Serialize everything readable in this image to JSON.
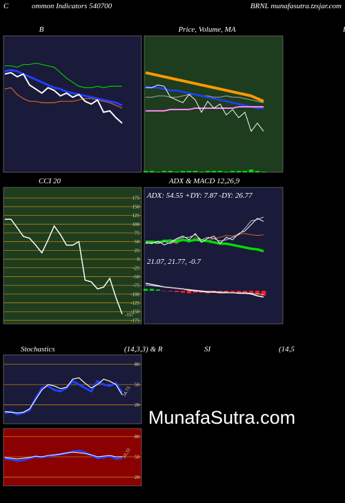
{
  "header": {
    "left_letter": "C",
    "left": "ommon Indicators 540700",
    "right": "BRNL munafasutra.tzsjar.com",
    "edge": "I"
  },
  "row_titles": [
    "Stochastics",
    "(14,3,3) & R",
    "SI",
    "(14,5"
  ],
  "watermark": "MunafaSutra.com",
  "chart_data": [
    {
      "type": "line",
      "title": "B",
      "background": "#1a1a3a",
      "ylim": [
        0,
        100
      ],
      "series": [
        {
          "color": "#00cc00",
          "width": 1.2,
          "values": [
            78,
            78,
            77,
            79,
            79,
            80,
            79,
            78,
            77,
            73,
            69,
            66,
            63,
            62,
            62,
            63,
            62,
            63,
            63,
            63
          ]
        },
        {
          "color": "#d2691e",
          "width": 1.2,
          "values": [
            61,
            62,
            57,
            54,
            52,
            52,
            51,
            51,
            51,
            52,
            52,
            52,
            53,
            54,
            54,
            53,
            52,
            51,
            49,
            47
          ]
        },
        {
          "color": "#2040ff",
          "width": 3,
          "values": [
            74,
            75,
            74,
            72,
            70,
            68,
            66,
            64,
            62,
            61,
            59,
            58,
            57,
            56,
            55,
            54,
            53,
            52,
            51,
            49
          ]
        },
        {
          "color": "#ffffff",
          "width": 2,
          "values": [
            72,
            73,
            70,
            72,
            64,
            61,
            58,
            62,
            60,
            56,
            58,
            55,
            57,
            52,
            50,
            53,
            44,
            45,
            40,
            36
          ]
        }
      ]
    },
    {
      "type": "line",
      "title": "Price, Volume, MA",
      "background": "#1e3d1e",
      "ylim": [
        0,
        100
      ],
      "series": [
        {
          "type": "bar",
          "color": "#00dd00",
          "values": [
            1,
            1,
            0.5,
            1,
            1,
            0.5,
            1,
            1,
            1,
            0.5,
            1,
            1,
            1,
            0.5,
            1,
            1,
            1,
            2,
            1,
            0.5
          ]
        },
        {
          "color": "#aaaaaa",
          "width": 1,
          "values": [
            55,
            55,
            56,
            56,
            55,
            55,
            56,
            57,
            57,
            56,
            56,
            55,
            55,
            56,
            55,
            55,
            54,
            53,
            52,
            51
          ]
        },
        {
          "color": "#ff9900",
          "width": 4,
          "values": [
            73,
            72,
            71,
            70,
            69,
            68,
            67,
            66,
            65,
            64,
            63,
            62,
            61,
            60,
            59,
            58,
            57,
            56,
            54,
            52
          ]
        },
        {
          "color": "#2040ff",
          "width": 2.5,
          "values": [
            63,
            62,
            62,
            61,
            60,
            60,
            59,
            58,
            57,
            56,
            55,
            54,
            53,
            52,
            51,
            50,
            49,
            48,
            47,
            47
          ]
        },
        {
          "color": "#ff88ff",
          "width": 2,
          "values": [
            45,
            45,
            45,
            45,
            46,
            46,
            46,
            46,
            47,
            47,
            47,
            47,
            47,
            47,
            47,
            48,
            48,
            48,
            48,
            48
          ]
        },
        {
          "color": "#ffffff",
          "width": 1,
          "values": [
            62,
            62,
            64,
            63,
            55,
            53,
            51,
            57,
            53,
            44,
            52,
            47,
            50,
            42,
            46,
            40,
            44,
            30,
            36,
            30
          ]
        }
      ]
    },
    {
      "type": "line",
      "title": "CCI 20",
      "background": "#1e3d1e",
      "ylim": [
        -185,
        205
      ],
      "grid": true,
      "grid_color": "#b8860b",
      "yticks": [
        175,
        150,
        125,
        100,
        75,
        50,
        25,
        0,
        -25,
        -50,
        -75,
        -100,
        -125,
        -150,
        -175
      ],
      "series": [
        {
          "color": "#ffffff",
          "width": 1.5,
          "end_label": true,
          "values": [
            114,
            114,
            90,
            65,
            60,
            40,
            18,
            55,
            95,
            70,
            40,
            40,
            50,
            -60,
            -65,
            -85,
            -80,
            -55,
            -110,
            -157
          ]
        }
      ]
    },
    {
      "type": "line",
      "title": "ADX & MACD 12,26,9",
      "label": "ADX: 54.55 +DY: 7.87 -DY: 26.77",
      "background": "#1a1a3a",
      "ylim": [
        0,
        100
      ],
      "series": [
        {
          "color": "#d2691e",
          "width": 1,
          "values": [
            22,
            21,
            22,
            26,
            24,
            20,
            28,
            22,
            30,
            26,
            24,
            28,
            30,
            33,
            32,
            35,
            36,
            34,
            33,
            34
          ]
        },
        {
          "color": "#00dd00",
          "width": 3.5,
          "values": [
            23,
            23,
            22,
            24,
            25,
            23,
            26,
            24,
            26,
            25,
            24,
            22,
            20,
            20,
            18,
            16,
            14,
            12,
            11,
            8
          ]
        },
        {
          "color": "#ffffff",
          "width": 1,
          "values": [
            22,
            20,
            24,
            18,
            22,
            28,
            32,
            26,
            36,
            22,
            28,
            32,
            20,
            30,
            26,
            36,
            40,
            50,
            60,
            55
          ]
        },
        {
          "color": "#cccccc",
          "width": 1,
          "values": [
            20,
            22,
            20,
            24,
            20,
            26,
            30,
            30,
            34,
            26,
            30,
            28,
            24,
            26,
            30,
            34,
            44,
            56,
            58,
            62
          ]
        }
      ]
    },
    {
      "type": "line",
      "label": "21.07, 21.77, -0.7",
      "ylim": [
        -50,
        50
      ],
      "series": [
        {
          "type": "bar",
          "color": "#ff2020",
          "pos_color": "#00dd00",
          "values": [
            3,
            3,
            2,
            0,
            -1,
            -2,
            -3,
            -4,
            -3,
            -3,
            -4,
            -3,
            -4,
            -3,
            -4,
            -4,
            -3,
            -4,
            -6,
            -8
          ]
        },
        {
          "color": "#ffffff",
          "width": 1.5,
          "values": [
            12,
            10,
            8,
            6,
            5,
            4,
            3,
            1,
            0,
            -1,
            -2,
            -2,
            -3,
            -3,
            -3,
            -4,
            -4,
            -5,
            -8,
            -10
          ]
        },
        {
          "color": "#cccccc",
          "width": 1,
          "values": [
            9,
            8,
            7,
            6,
            5,
            4,
            3,
            2,
            1,
            0,
            -1,
            -1,
            -2,
            -2,
            -3,
            -3,
            -3,
            -4,
            -5,
            -6
          ]
        }
      ]
    },
    {
      "type": "line",
      "background": "#1a1a3a",
      "ylim": [
        -8,
        94
      ],
      "grid": true,
      "grid_color": "#b8860b",
      "yticks": [
        80,
        50,
        20
      ],
      "series": [
        {
          "color": "#2040ff",
          "width": 3,
          "values": [
            8,
            10,
            6,
            8,
            12,
            30,
            45,
            48,
            42,
            40,
            45,
            55,
            50,
            45,
            40,
            55,
            50,
            48,
            52,
            38
          ]
        },
        {
          "color": "#ffffff",
          "width": 1.2,
          "end_label": true,
          "values": [
            10,
            9,
            8,
            9,
            14,
            28,
            42,
            50,
            48,
            44,
            46,
            58,
            60,
            52,
            45,
            50,
            58,
            55,
            50,
            34.73
          ]
        }
      ]
    },
    {
      "type": "line",
      "background": "#8b0000",
      "ylim": [
        7,
        92
      ],
      "grid": true,
      "grid_color": "#b8860b",
      "yticks": [
        80,
        50,
        20
      ],
      "series": [
        {
          "color": "#2040ff",
          "width": 3,
          "values": [
            47,
            46,
            44,
            45,
            48,
            50,
            49,
            51,
            52,
            54,
            55,
            58,
            59,
            57,
            52,
            48,
            49,
            51,
            47,
            48
          ]
        },
        {
          "color": "#ffffff",
          "width": 1,
          "end_label": true,
          "values": [
            49,
            48,
            47,
            48,
            49,
            51,
            50,
            52,
            53,
            54,
            56,
            57,
            56,
            55,
            53,
            50,
            51,
            52,
            50,
            50.33
          ]
        }
      ]
    }
  ]
}
